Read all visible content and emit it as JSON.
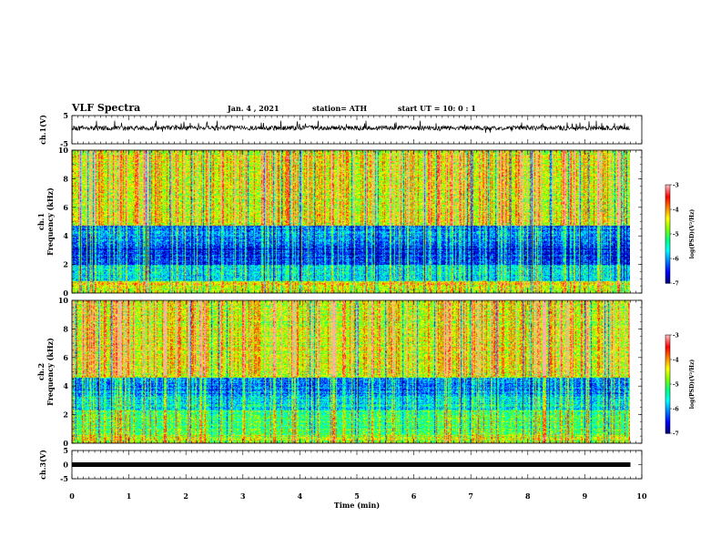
{
  "header": {
    "title": "VLF Spectra",
    "date": "Jan. 4 , 2021",
    "station": "station= ATH",
    "start": "start  UT =   10: 0  : 1"
  },
  "colors": {
    "colormap": [
      "#000080",
      "#0000ff",
      "#0080ff",
      "#00ffff",
      "#00ff80",
      "#80ff00",
      "#ffff00",
      "#ff8000",
      "#ff0000",
      "#ffb0b0"
    ],
    "trace": "#000000"
  },
  "chart_data": [
    {
      "type": "line",
      "panel": "waveform-ch1",
      "ylabel": "ch.1(V)",
      "xlim": [
        0,
        10
      ],
      "ylim": [
        -5,
        5
      ],
      "yticks": [
        "5",
        "-5"
      ],
      "trace_range_v": [
        -1.2,
        2.4
      ]
    },
    {
      "type": "heatmap",
      "panel": "spectrogram-ch1",
      "ylabel": "Frequency (kHz)",
      "ylabel_channel": "ch.1",
      "xlim": [
        0,
        9.8
      ],
      "ylim": [
        0,
        10
      ],
      "yticks": [
        "0",
        "2",
        "4",
        "6",
        "8",
        "10"
      ],
      "colorbar": {
        "label": "log(PSD)(V²/Hz)",
        "range": [
          -7,
          -3
        ],
        "ticks": [
          "-3",
          "-4",
          "-5",
          "-6",
          "-7"
        ]
      },
      "bands_khz": [
        {
          "from": 0.0,
          "to": 0.5,
          "level": 0.55
        },
        {
          "from": 0.5,
          "to": 0.8,
          "level": 0.65
        },
        {
          "from": 0.8,
          "to": 2.0,
          "level": 0.3
        },
        {
          "from": 2.0,
          "to": 3.3,
          "level": 0.1
        },
        {
          "from": 3.3,
          "to": 4.7,
          "level": 0.2
        },
        {
          "from": 4.7,
          "to": 10.0,
          "level": 0.6
        }
      ]
    },
    {
      "type": "heatmap",
      "panel": "spectrogram-ch2",
      "ylabel": "Frequency (kHz)",
      "ylabel_channel": "ch.2",
      "xlim": [
        0,
        9.8
      ],
      "ylim": [
        0,
        10
      ],
      "yticks": [
        "0",
        "2",
        "4",
        "6",
        "8",
        "10"
      ],
      "colorbar": {
        "label": "log(PSD)(V²/Hz)",
        "range": [
          -7,
          -3
        ],
        "ticks": [
          "-3",
          "-4",
          "-5",
          "-6",
          "-7"
        ]
      },
      "bands_khz": [
        {
          "from": 0.0,
          "to": 0.6,
          "level": 0.55
        },
        {
          "from": 0.6,
          "to": 2.3,
          "level": 0.45
        },
        {
          "from": 2.3,
          "to": 3.3,
          "level": 0.3
        },
        {
          "from": 3.3,
          "to": 4.6,
          "level": 0.2
        },
        {
          "from": 4.6,
          "to": 10.0,
          "level": 0.6
        }
      ]
    },
    {
      "type": "line",
      "panel": "waveform-ch3",
      "ylabel": "ch.3(V)",
      "xlabel": "Time (min)",
      "xlim": [
        0,
        10
      ],
      "ylim": [
        -5,
        5
      ],
      "yticks": [
        "5",
        "0",
        "-5"
      ],
      "xticks": [
        "0",
        "1",
        "2",
        "3",
        "4",
        "5",
        "6",
        "7",
        "8",
        "9",
        "10"
      ],
      "trace_level_v": 0
    }
  ]
}
